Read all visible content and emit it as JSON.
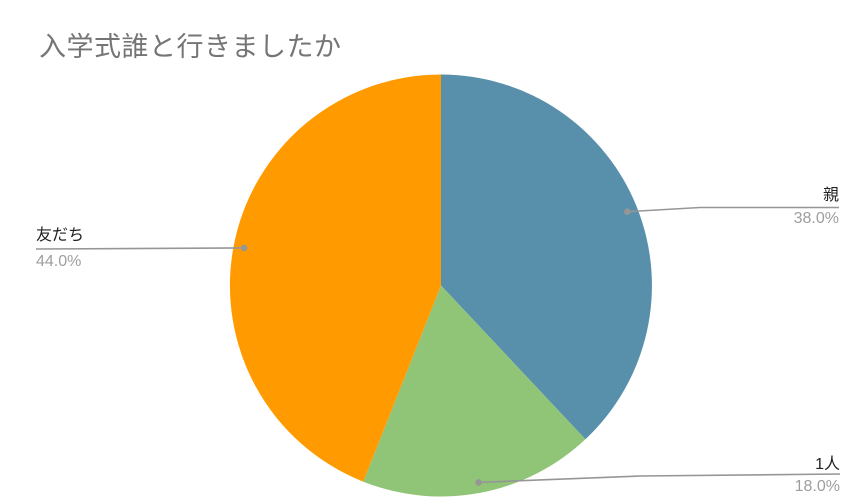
{
  "chart_data": {
    "type": "pie",
    "title": "入学式誰と行きましたか",
    "categories": [
      "親",
      "1人",
      "友だち"
    ],
    "values": [
      38.0,
      18.0,
      44.0
    ],
    "labels": [
      "38.0%",
      "18.0%",
      "44.0%"
    ],
    "colors": [
      "#5890AC",
      "#90C577",
      "#FF9B00"
    ],
    "start_angle_deg": 0,
    "direction": "clockwise",
    "legend_position": "outside-labels",
    "background": "#FFFFFF",
    "title_color": "#757575",
    "label_name_color": "#212121",
    "label_pct_color": "#9E9E9E",
    "leader_line_color": "#969696"
  }
}
